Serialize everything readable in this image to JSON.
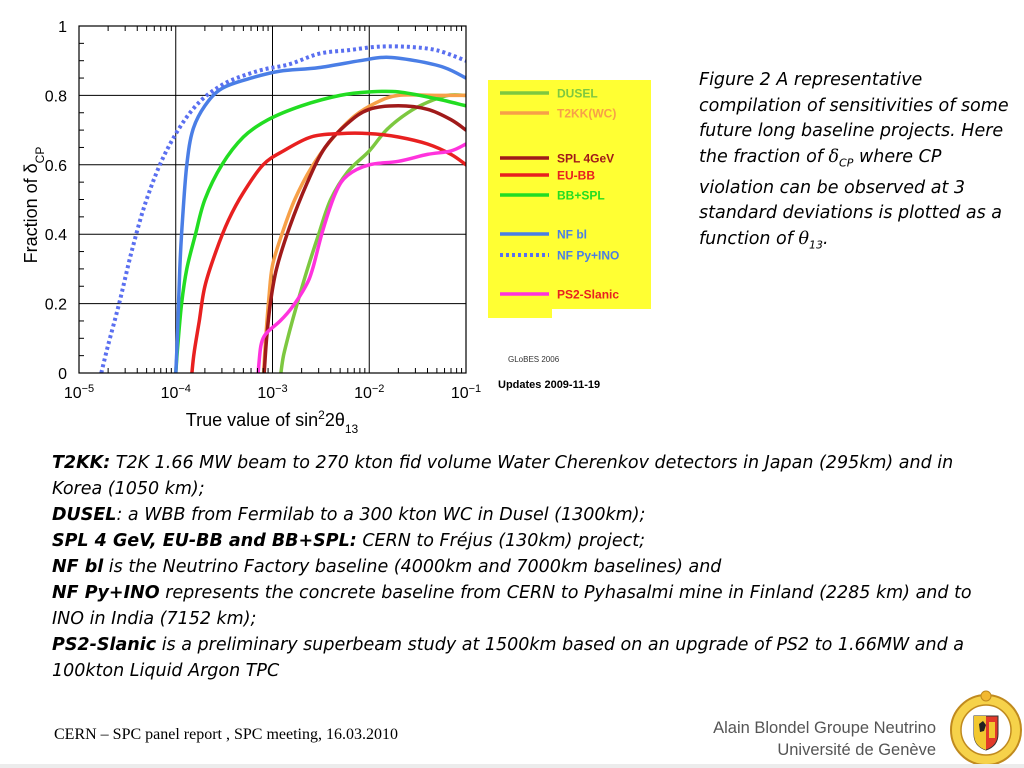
{
  "chart_data": {
    "type": "line",
    "ylabel_main": "Fraction of δ",
    "ylabel_sub": "CP",
    "xlabel_main": "True value of sin",
    "xlabel_sup": "2",
    "xlabel_mid": "2θ",
    "xlabel_sub": "13",
    "x_scale": "log",
    "xlim": [
      1e-05,
      0.1
    ],
    "ylim": [
      0,
      1
    ],
    "grid": true,
    "x_ticks": [
      {
        "base": "10",
        "exp": "−5"
      },
      {
        "base": "10",
        "exp": "−4"
      },
      {
        "base": "10",
        "exp": "−3"
      },
      {
        "base": "10",
        "exp": "−2"
      },
      {
        "base": "10",
        "exp": "−1"
      }
    ],
    "y_ticks": [
      "0",
      "0.2",
      "0.4",
      "0.6",
      "0.8",
      "1"
    ],
    "legend_position": "right",
    "series": [
      {
        "name": "DUSEL",
        "color": "#7dc840",
        "dashed": false,
        "points": [
          [
            0.00122,
            0
          ],
          [
            0.0013,
            0.05
          ],
          [
            0.0015,
            0.12
          ],
          [
            0.0018,
            0.2
          ],
          [
            0.0023,
            0.3
          ],
          [
            0.003,
            0.4
          ],
          [
            0.004,
            0.5
          ],
          [
            0.006,
            0.58
          ],
          [
            0.01,
            0.64
          ],
          [
            0.015,
            0.7
          ],
          [
            0.025,
            0.75
          ],
          [
            0.04,
            0.78
          ],
          [
            0.065,
            0.8
          ],
          [
            0.1,
            0.8
          ]
        ]
      },
      {
        "name": "T2KK(WC)",
        "color": "#f7a048",
        "dashed": false,
        "points": [
          [
            0.00081,
            0
          ],
          [
            0.00085,
            0.1
          ],
          [
            0.00092,
            0.22
          ],
          [
            0.001,
            0.31
          ],
          [
            0.00125,
            0.4
          ],
          [
            0.0017,
            0.5
          ],
          [
            0.0025,
            0.59
          ],
          [
            0.004,
            0.67
          ],
          [
            0.007,
            0.74
          ],
          [
            0.012,
            0.78
          ],
          [
            0.02,
            0.8
          ],
          [
            0.05,
            0.8
          ],
          [
            0.1,
            0.8
          ]
        ]
      },
      {
        "name": "SPL 4GeV",
        "color": "#a01a1a",
        "dashed": false,
        "points": [
          [
            0.00082,
            0
          ],
          [
            0.00087,
            0.1
          ],
          [
            0.00095,
            0.2
          ],
          [
            0.0011,
            0.3
          ],
          [
            0.0015,
            0.42
          ],
          [
            0.0023,
            0.55
          ],
          [
            0.0035,
            0.65
          ],
          [
            0.006,
            0.72
          ],
          [
            0.01,
            0.76
          ],
          [
            0.02,
            0.77
          ],
          [
            0.04,
            0.76
          ],
          [
            0.07,
            0.73
          ],
          [
            0.1,
            0.7
          ]
        ]
      },
      {
        "name": "EU-BB",
        "color": "#e82020",
        "dashed": false,
        "points": [
          [
            0.000147,
            0
          ],
          [
            0.000155,
            0.06
          ],
          [
            0.000175,
            0.15
          ],
          [
            0.0002,
            0.25
          ],
          [
            0.00026,
            0.35
          ],
          [
            0.00035,
            0.44
          ],
          [
            0.0005,
            0.52
          ],
          [
            0.0008,
            0.6
          ],
          [
            0.0013,
            0.64
          ],
          [
            0.0025,
            0.68
          ],
          [
            0.005,
            0.69
          ],
          [
            0.01,
            0.69
          ],
          [
            0.02,
            0.68
          ],
          [
            0.04,
            0.66
          ],
          [
            0.07,
            0.63
          ],
          [
            0.1,
            0.6
          ]
        ]
      },
      {
        "name": "BB+SPL",
        "color": "#22dd22",
        "dashed": false,
        "points": [
          [
            0.0001,
            0
          ],
          [
            0.000105,
            0.08
          ],
          [
            0.000115,
            0.2
          ],
          [
            0.00013,
            0.3
          ],
          [
            0.00016,
            0.4
          ],
          [
            0.0002,
            0.5
          ],
          [
            0.0003,
            0.6
          ],
          [
            0.0005,
            0.68
          ],
          [
            0.0009,
            0.73
          ],
          [
            0.002,
            0.77
          ],
          [
            0.005,
            0.8
          ],
          [
            0.01,
            0.81
          ],
          [
            0.02,
            0.81
          ],
          [
            0.05,
            0.79
          ],
          [
            0.1,
            0.77
          ]
        ]
      },
      {
        "name": "NF bl",
        "color": "#4a7ee6",
        "dashed": false,
        "points": [
          [
            0.0001,
            0
          ],
          [
            0.000104,
            0.1
          ],
          [
            0.00011,
            0.3
          ],
          [
            0.000118,
            0.45
          ],
          [
            0.00013,
            0.6
          ],
          [
            0.00015,
            0.7
          ],
          [
            0.0002,
            0.77
          ],
          [
            0.0003,
            0.82
          ],
          [
            0.0006,
            0.85
          ],
          [
            0.0012,
            0.87
          ],
          [
            0.003,
            0.88
          ],
          [
            0.008,
            0.9
          ],
          [
            0.015,
            0.91
          ],
          [
            0.03,
            0.9
          ],
          [
            0.06,
            0.88
          ],
          [
            0.1,
            0.85
          ]
        ]
      },
      {
        "name": "NF Py+INO",
        "color": "#5a6ff0",
        "dashed": true,
        "points": [
          [
            1.7e-05,
            0
          ],
          [
            2e-05,
            0.08
          ],
          [
            2.6e-05,
            0.2
          ],
          [
            3.5e-05,
            0.35
          ],
          [
            5e-05,
            0.5
          ],
          [
            8e-05,
            0.64
          ],
          [
            0.00015,
            0.76
          ],
          [
            0.0003,
            0.83
          ],
          [
            0.0007,
            0.87
          ],
          [
            0.0015,
            0.89
          ],
          [
            0.003,
            0.92
          ],
          [
            0.006,
            0.93
          ],
          [
            0.012,
            0.94
          ],
          [
            0.025,
            0.94
          ],
          [
            0.05,
            0.93
          ],
          [
            0.1,
            0.9
          ]
        ]
      },
      {
        "name": "PS2-Slanic",
        "color": "#ff33dd",
        "dashed": false,
        "points": [
          [
            0.00071,
            0
          ],
          [
            0.00075,
            0.07
          ],
          [
            0.0008,
            0.1
          ],
          [
            0.0009,
            0.12
          ],
          [
            0.0012,
            0.15
          ],
          [
            0.0016,
            0.19
          ],
          [
            0.0022,
            0.25
          ],
          [
            0.0026,
            0.3
          ],
          [
            0.0033,
            0.41
          ],
          [
            0.0045,
            0.52
          ],
          [
            0.006,
            0.57
          ],
          [
            0.01,
            0.6
          ],
          [
            0.02,
            0.61
          ],
          [
            0.04,
            0.63
          ],
          [
            0.07,
            0.64
          ],
          [
            0.1,
            0.66
          ]
        ]
      }
    ],
    "legend_groups": [
      {
        "name": "DUSEL",
        "text_color": "#7dc840"
      },
      {
        "name": "T2KK(WC)",
        "text_color": "#f7a048"
      },
      {
        "name": "SPL 4GeV",
        "text_color": "#a01a1a"
      },
      {
        "name": "EU-BB",
        "text_color": "#e82020"
      },
      {
        "name": "BB+SPL",
        "text_color": "#22dd22"
      },
      {
        "name": "NF bl",
        "text_color": "#4a7ee6"
      },
      {
        "name": "NF Py+INO",
        "text_color": "#4a7ee6"
      },
      {
        "name": "PS2-Slanic",
        "text_color": "#e82020"
      }
    ],
    "annotations": {
      "globes": "GLoBES 2006",
      "updates": "Updates 2009-11-19"
    },
    "legend_bg": "#ffff33"
  },
  "caption": {
    "part1": "Figure 2 A representative compilation of sensitivities of some future long baseline projects. Here the fraction of ",
    "delta": "δ",
    "delta_sub": "CP",
    "part2": " where CP violation can be observed at 3 standard deviations is plotted as a function of ",
    "theta": "θ",
    "theta_sub": "13",
    "part3": "."
  },
  "notes": [
    {
      "label": "T2KK:",
      "text": " T2K 1.66 MW beam to 270 kton fid volume Water Cherenkov detectors in Japan (295km) and in Korea (1050 km);"
    },
    {
      "label": "DUSEL",
      "text": ": a WBB from Fermilab to a 300 kton WC in Dusel (1300km);"
    },
    {
      "label": "SPL 4 GeV, EU-BB and BB+SPL:",
      "text": " CERN to Fréjus (130km) project;"
    },
    {
      "label": "NF bl",
      "text": " is the Neutrino Factory baseline (4000km and 7000km baselines) and"
    },
    {
      "label": "NF Py+INO",
      "text": " represents the concrete baseline from CERN to Pyhasalmi mine in Finland (2285 km) and to INO in India (7152 km);"
    },
    {
      "label": "PS2-Slanic",
      "text": " is a preliminary superbeam study at 1500km based on an upgrade of PS2 to 1.66MW and a 100kton Liquid Argon TPC"
    }
  ],
  "footer": {
    "left": "CERN – SPC panel report , SPC  meeting, 16.03.2010",
    "right_line1": "Alain Blondel Groupe Neutrino",
    "right_line2": "Université de Genève"
  },
  "logo": {
    "ring_text": "SCHOLA GENEVENSIS",
    "year": "1559"
  }
}
